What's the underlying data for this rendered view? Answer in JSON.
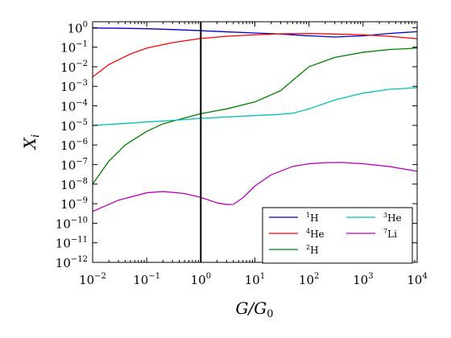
{
  "chart_data": {
    "type": "line",
    "title": "",
    "xlabel": "G/G₀",
    "ylabel": "Xᵢ",
    "xscale": "log",
    "yscale": "log",
    "xlim": [
      0.01,
      10000
    ],
    "ylim": [
      1e-12,
      2
    ],
    "grid": false,
    "legend_position": "lower-right",
    "x_ticks": [
      {
        "value": 0.01,
        "label": "10",
        "exp": "−2"
      },
      {
        "value": 0.1,
        "label": "10",
        "exp": "−1"
      },
      {
        "value": 1,
        "label": "10",
        "exp": "0"
      },
      {
        "value": 10,
        "label": "10",
        "exp": "1"
      },
      {
        "value": 100,
        "label": "10",
        "exp": "2"
      },
      {
        "value": 1000,
        "label": "10",
        "exp": "3"
      },
      {
        "value": 10000,
        "label": "10",
        "exp": "4"
      }
    ],
    "y_ticks": [
      {
        "value": 1,
        "label": "10",
        "exp": "0"
      },
      {
        "value": 0.1,
        "label": "10",
        "exp": "−1"
      },
      {
        "value": 0.01,
        "label": "10",
        "exp": "−2"
      },
      {
        "value": 0.001,
        "label": "10",
        "exp": "−3"
      },
      {
        "value": 0.0001,
        "label": "10",
        "exp": "−4"
      },
      {
        "value": 1e-05,
        "label": "10",
        "exp": "−5"
      },
      {
        "value": 1e-06,
        "label": "10",
        "exp": "−6"
      },
      {
        "value": 1e-07,
        "label": "10",
        "exp": "−7"
      },
      {
        "value": 1e-08,
        "label": "10",
        "exp": "−8"
      },
      {
        "value": 1e-09,
        "label": "10",
        "exp": "−9"
      },
      {
        "value": 1e-10,
        "label": "10",
        "exp": "−10"
      },
      {
        "value": 1e-11,
        "label": "10",
        "exp": "−11"
      },
      {
        "value": 1e-12,
        "label": "10",
        "exp": "−12"
      }
    ],
    "vline": {
      "x": 1,
      "color": "#000000"
    },
    "series": [
      {
        "name": "¹H",
        "sup": "1",
        "base": "H",
        "color": "#0000cc",
        "x": [
          0.01,
          0.03,
          0.1,
          0.3,
          1,
          3,
          10,
          30,
          100,
          300,
          1000,
          3000,
          10000
        ],
        "y": [
          0.95,
          0.93,
          0.88,
          0.8,
          0.7,
          0.61,
          0.53,
          0.47,
          0.38,
          0.33,
          0.38,
          0.5,
          0.62
        ]
      },
      {
        "name": "⁴He",
        "sup": "4",
        "base": "He",
        "color": "#ff0000",
        "x": [
          0.01,
          0.02,
          0.05,
          0.1,
          0.3,
          1,
          3,
          10,
          30,
          100,
          300,
          1000,
          3000,
          10000
        ],
        "y": [
          0.003,
          0.013,
          0.045,
          0.09,
          0.17,
          0.28,
          0.36,
          0.43,
          0.48,
          0.5,
          0.47,
          0.43,
          0.36,
          0.27
        ]
      },
      {
        "name": "²H",
        "sup": "2",
        "base": "H",
        "color": "#007f00",
        "x": [
          0.01,
          0.02,
          0.04,
          0.1,
          0.2,
          0.5,
          1,
          3,
          10,
          30,
          50,
          100,
          300,
          1000,
          3000,
          10000
        ],
        "y": [
          1e-08,
          1.5e-07,
          1e-06,
          5e-06,
          1.2e-05,
          2.4e-05,
          4e-05,
          7e-05,
          0.00016,
          0.0006,
          0.002,
          0.01,
          0.03,
          0.055,
          0.075,
          0.09
        ]
      },
      {
        "name": "³He",
        "sup": "3",
        "base": "He",
        "color": "#00bfbf",
        "x": [
          0.01,
          0.03,
          0.1,
          0.3,
          1,
          3,
          10,
          30,
          50,
          100,
          300,
          1000,
          3000,
          10000
        ],
        "y": [
          1e-05,
          1.2e-05,
          1.5e-05,
          1.8e-05,
          2.3e-05,
          2.7e-05,
          3.2e-05,
          3.7e-05,
          4.2e-05,
          7e-05,
          0.0002,
          0.00045,
          0.0007,
          0.00085
        ]
      },
      {
        "name": "⁷Li",
        "sup": "7",
        "base": "Li",
        "color": "#bf00bf",
        "x": [
          0.01,
          0.03,
          0.1,
          0.2,
          0.5,
          1,
          2,
          3,
          4,
          6,
          10,
          20,
          50,
          100,
          200,
          400,
          1000,
          3000,
          10000
        ],
        "y": [
          4e-10,
          1.5e-09,
          3.6e-09,
          4.2e-09,
          3.3e-09,
          2.1e-09,
          1.1e-09,
          9e-10,
          9.3e-10,
          2e-09,
          8e-09,
          3e-08,
          8e-08,
          1.1e-07,
          1.25e-07,
          1.28e-07,
          1.1e-07,
          8e-08,
          4.5e-08
        ]
      }
    ]
  }
}
